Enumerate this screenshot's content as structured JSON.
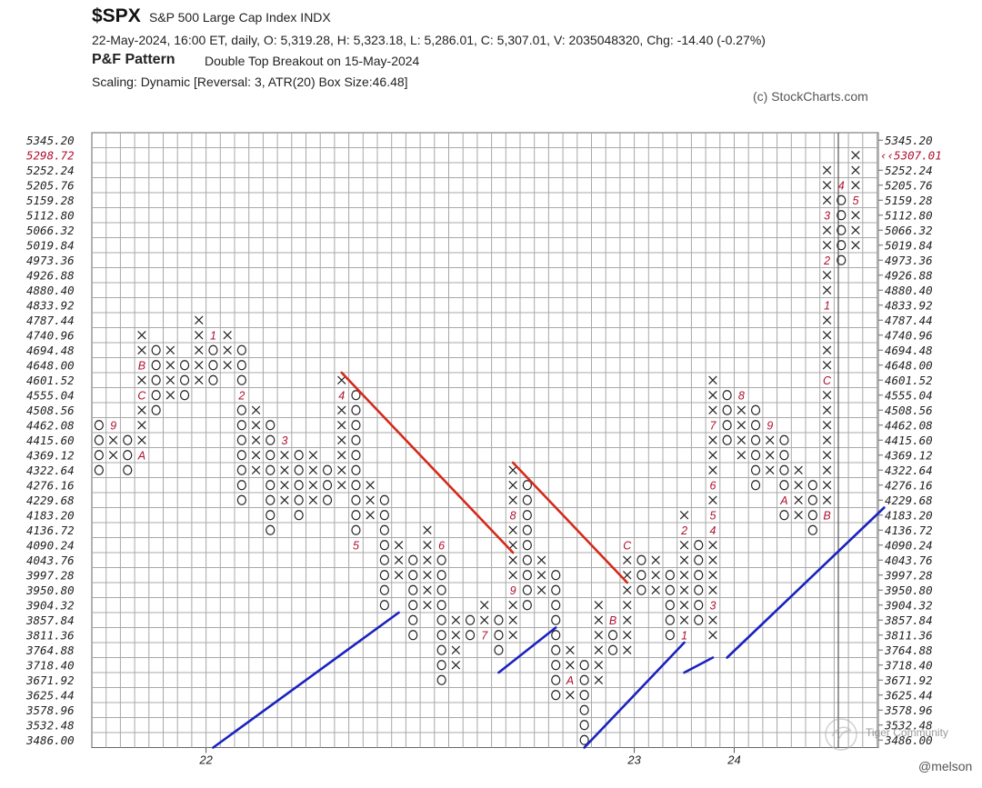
{
  "header": {
    "symbol": "$SPX",
    "name": "S&P 500 Large Cap Index  INDX",
    "stats": "22-May-2024, 16:00 ET, daily, O: 5,319.28, H: 5,323.18, L: 5,286.01, C: 5,307.01, V: 2035048320, Chg: -14.40 (-0.27%)",
    "pattern_label": "P&F Pattern",
    "pattern_text": "Double Top Breakout on 15-May-2024",
    "scaling": "Scaling: Dynamic [Reversal: 3, ATR(20) Box Size:46.48]",
    "copyright": "(c) StockCharts.com"
  },
  "footer": {
    "watermark": "Tiger Community",
    "credit": "@melson"
  },
  "colors": {
    "grid": "#a8a8a8",
    "x_mark": "#222222",
    "o_mark": "#222222",
    "month_mark": "#b01030",
    "resistance": "#d42a1a",
    "support": "#1a22c0",
    "current_price": "#b01030"
  },
  "chart_data": {
    "type": "point-and-figure",
    "symbol": "$SPX",
    "box_size": 46.48,
    "reversal": 3,
    "y_labels": [
      "5345.20",
      "5298.72",
      "5252.24",
      "5205.76",
      "5159.28",
      "5112.80",
      "5066.32",
      "5019.84",
      "4973.36",
      "4926.88",
      "4880.40",
      "4833.92",
      "4787.44",
      "4740.96",
      "4694.48",
      "4648.00",
      "4601.52",
      "4555.04",
      "4508.56",
      "4462.08",
      "4415.60",
      "4369.12",
      "4322.64",
      "4276.16",
      "4229.68",
      "4183.20",
      "4136.72",
      "4090.24",
      "4043.76",
      "3997.28",
      "3950.80",
      "3904.32",
      "3857.84",
      "3811.36",
      "3764.88",
      "3718.40",
      "3671.92",
      "3625.44",
      "3578.96",
      "3532.48",
      "3486.00"
    ],
    "y_labels_right": [
      "5345.20",
      "",
      "5252.24",
      "5205.76",
      "5159.28",
      "5112.80",
      "5066.32",
      "5019.84",
      "4973.36",
      "4926.88",
      "4880.40",
      "4833.92",
      "4787.44",
      "4740.96",
      "4694.48",
      "4648.00",
      "4601.52",
      "4555.04",
      "4508.56",
      "4462.08",
      "4415.60",
      "4369.12",
      "4322.64",
      "4276.16",
      "4229.68",
      "4183.20",
      "4136.72",
      "4090.24",
      "4043.76",
      "3997.28",
      "3950.80",
      "3904.32",
      "3857.84",
      "3811.36",
      "3764.88",
      "3718.40",
      "3671.92",
      "3625.44",
      "3578.96",
      "3532.48",
      "3486.00"
    ],
    "current_price_label": "5307.01",
    "current_price_left_label": "5298.72",
    "x_ticks": [
      {
        "col": 8,
        "label": "22"
      },
      {
        "col": 38,
        "label": "23"
      },
      {
        "col": 45,
        "label": "24"
      }
    ],
    "columns": [
      {
        "t": "O",
        "top": "4462.08",
        "bottom": "4322.64",
        "marks": []
      },
      {
        "t": "X",
        "top": "4462.08",
        "bottom": "4369.12",
        "marks": [
          {
            "p": "4462.08",
            "c": "9"
          }
        ]
      },
      {
        "t": "O",
        "top": "4415.60",
        "bottom": "4322.64",
        "marks": []
      },
      {
        "t": "X",
        "top": "4740.96",
        "bottom": "4369.12",
        "marks": [
          {
            "p": "4369.12",
            "c": "A"
          },
          {
            "p": "4648.00",
            "c": "B"
          },
          {
            "p": "4555.04",
            "c": "C"
          }
        ]
      },
      {
        "t": "O",
        "top": "4694.48",
        "bottom": "4508.56",
        "marks": []
      },
      {
        "t": "X",
        "top": "4694.48",
        "bottom": "4555.04",
        "marks": []
      },
      {
        "t": "O",
        "top": "4648.00",
        "bottom": "4555.04",
        "marks": []
      },
      {
        "t": "X",
        "top": "4787.44",
        "bottom": "4601.52",
        "marks": []
      },
      {
        "t": "O",
        "top": "4740.96",
        "bottom": "4601.52",
        "marks": [
          {
            "p": "4740.96",
            "c": "1"
          }
        ]
      },
      {
        "t": "X",
        "top": "4740.96",
        "bottom": "4648.00",
        "marks": []
      },
      {
        "t": "O",
        "top": "4694.48",
        "bottom": "4229.68",
        "marks": [
          {
            "p": "4555.04",
            "c": "2"
          }
        ]
      },
      {
        "t": "X",
        "top": "4508.56",
        "bottom": "4322.64",
        "marks": []
      },
      {
        "t": "O",
        "top": "4462.08",
        "bottom": "4136.72",
        "marks": []
      },
      {
        "t": "X",
        "top": "4415.60",
        "bottom": "4229.68",
        "marks": [
          {
            "p": "4415.60",
            "c": "3"
          }
        ]
      },
      {
        "t": "O",
        "top": "4369.12",
        "bottom": "4183.20",
        "marks": []
      },
      {
        "t": "X",
        "top": "4369.12",
        "bottom": "4229.68",
        "marks": []
      },
      {
        "t": "O",
        "top": "4322.64",
        "bottom": "4229.68",
        "marks": []
      },
      {
        "t": "X",
        "top": "4601.52",
        "bottom": "4276.16",
        "marks": [
          {
            "p": "4555.04",
            "c": "4"
          }
        ]
      },
      {
        "t": "O",
        "top": "4555.04",
        "bottom": "4090.24",
        "marks": [
          {
            "p": "4090.24",
            "c": "5"
          }
        ]
      },
      {
        "t": "X",
        "top": "4276.16",
        "bottom": "4183.20",
        "marks": []
      },
      {
        "t": "O",
        "top": "4229.68",
        "bottom": "3904.32",
        "marks": []
      },
      {
        "t": "X",
        "top": "4090.24",
        "bottom": "3997.28",
        "marks": []
      },
      {
        "t": "O",
        "top": "4043.76",
        "bottom": "3811.36",
        "marks": []
      },
      {
        "t": "X",
        "top": "4136.72",
        "bottom": "3904.32",
        "marks": []
      },
      {
        "t": "O",
        "top": "4090.24",
        "bottom": "3671.92",
        "marks": [
          {
            "p": "4090.24",
            "c": "6"
          }
        ]
      },
      {
        "t": "X",
        "top": "3857.84",
        "bottom": "3718.40",
        "marks": []
      },
      {
        "t": "O",
        "top": "3857.84",
        "bottom": "3811.36",
        "marks": []
      },
      {
        "t": "X",
        "top": "3904.32",
        "bottom": "3811.36",
        "marks": [
          {
            "p": "3811.36",
            "c": "7"
          }
        ]
      },
      {
        "t": "O",
        "top": "3857.84",
        "bottom": "3764.88",
        "marks": []
      },
      {
        "t": "X",
        "top": "4322.64",
        "bottom": "3811.36",
        "marks": [
          {
            "p": "4183.20",
            "c": "8"
          },
          {
            "p": "3950.80",
            "c": "9"
          }
        ]
      },
      {
        "t": "O",
        "top": "4276.16",
        "bottom": "3904.32",
        "marks": []
      },
      {
        "t": "X",
        "top": "4043.76",
        "bottom": "3950.80",
        "marks": []
      },
      {
        "t": "O",
        "top": "3997.28",
        "bottom": "3625.44",
        "marks": []
      },
      {
        "t": "X",
        "top": "3764.88",
        "bottom": "3625.44",
        "marks": [
          {
            "p": "3671.92",
            "c": "A"
          }
        ]
      },
      {
        "t": "O",
        "top": "3718.40",
        "bottom": "3486.00",
        "marks": []
      },
      {
        "t": "X",
        "top": "3904.32",
        "bottom": "3671.92",
        "marks": []
      },
      {
        "t": "O",
        "top": "3857.84",
        "bottom": "3764.88",
        "marks": [
          {
            "p": "3857.84",
            "c": "B"
          }
        ]
      },
      {
        "t": "X",
        "top": "4090.24",
        "bottom": "3764.88",
        "marks": [
          {
            "p": "4090.24",
            "c": "C"
          }
        ]
      },
      {
        "t": "O",
        "top": "4043.76",
        "bottom": "3950.80",
        "marks": []
      },
      {
        "t": "X",
        "top": "4043.76",
        "bottom": "3950.80",
        "marks": []
      },
      {
        "t": "O",
        "top": "3997.28",
        "bottom": "3811.36",
        "marks": []
      },
      {
        "t": "X",
        "top": "4183.20",
        "bottom": "3811.36",
        "marks": [
          {
            "p": "3811.36",
            "c": "1"
          },
          {
            "p": "4136.72",
            "c": "2"
          }
        ]
      },
      {
        "t": "O",
        "top": "4090.24",
        "bottom": "3857.84",
        "marks": []
      },
      {
        "t": "X",
        "top": "4601.52",
        "bottom": "3811.36",
        "marks": [
          {
            "p": "3904.32",
            "c": "3"
          },
          {
            "p": "4136.72",
            "c": "4"
          },
          {
            "p": "4183.20",
            "c": "5"
          },
          {
            "p": "4276.16",
            "c": "6"
          },
          {
            "p": "4462.08",
            "c": "7"
          }
        ]
      },
      {
        "t": "O",
        "top": "4555.04",
        "bottom": "4415.60",
        "marks": []
      },
      {
        "t": "X",
        "top": "4555.04",
        "bottom": "4369.12",
        "marks": [
          {
            "p": "4555.04",
            "c": "8"
          }
        ]
      },
      {
        "t": "O",
        "top": "4508.56",
        "bottom": "4276.16",
        "marks": []
      },
      {
        "t": "X",
        "top": "4462.08",
        "bottom": "4322.64",
        "marks": [
          {
            "p": "4462.08",
            "c": "9"
          }
        ]
      },
      {
        "t": "O",
        "top": "4415.60",
        "bottom": "4183.20",
        "marks": [
          {
            "p": "4229.68",
            "c": "A"
          }
        ]
      },
      {
        "t": "X",
        "top": "4322.64",
        "bottom": "4183.20",
        "marks": []
      },
      {
        "t": "O",
        "top": "4276.16",
        "bottom": "4136.72",
        "marks": []
      },
      {
        "t": "X",
        "top": "5252.24",
        "bottom": "4183.20",
        "marks": [
          {
            "p": "4183.20",
            "c": "B"
          },
          {
            "p": "4601.52",
            "c": "C"
          },
          {
            "p": "4833.92",
            "c": "1"
          },
          {
            "p": "4973.36",
            "c": "2"
          },
          {
            "p": "5112.80",
            "c": "3"
          }
        ]
      },
      {
        "t": "O",
        "top": "5205.76",
        "bottom": "4973.36",
        "marks": [
          {
            "p": "5205.76",
            "c": "4"
          }
        ]
      },
      {
        "t": "X",
        "top": "5298.72",
        "bottom": "5019.84",
        "marks": [
          {
            "p": "5159.28",
            "c": "5"
          }
        ]
      }
    ],
    "trendlines": [
      {
        "type": "resistance",
        "from": {
          "col": 17,
          "p": "4648.00"
        },
        "to": {
          "col": 29,
          "p": "4090.24"
        }
      },
      {
        "type": "resistance",
        "from": {
          "col": 29,
          "p": "4369.12"
        },
        "to": {
          "col": 37,
          "p": "3997.28"
        }
      },
      {
        "type": "support",
        "from": {
          "col": 8,
          "p": "3486.00"
        },
        "to": {
          "col": 21,
          "p": "3904.32"
        }
      },
      {
        "type": "support",
        "from": {
          "col": 28,
          "p": "3718.40"
        },
        "to": {
          "col": 32,
          "p": "3857.84"
        }
      },
      {
        "type": "support",
        "from": {
          "col": 34,
          "p": "3486.00"
        },
        "to": {
          "col": 41,
          "p": "3811.36"
        }
      },
      {
        "type": "support",
        "from": {
          "col": 41,
          "p": "3718.40"
        },
        "to": {
          "col": 43,
          "p": "3764.88"
        }
      },
      {
        "type": "support",
        "from": {
          "col": 44,
          "p": "3764.88"
        },
        "to": {
          "col": 55,
          "p": "4229.68"
        }
      }
    ]
  }
}
